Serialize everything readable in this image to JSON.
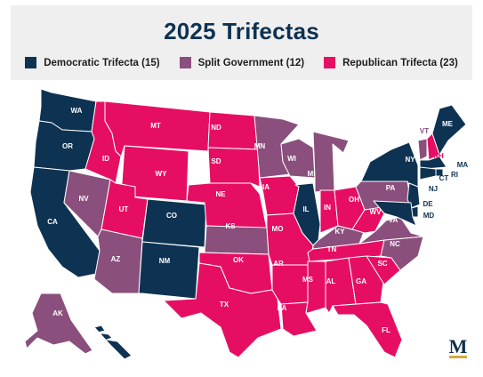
{
  "title": "2025 Trifectas",
  "colors": {
    "democratic": "#0e3251",
    "split": "#8a4f7d",
    "republican": "#e60e62",
    "border": "#ffffff",
    "logo": "#0e3251",
    "logo_accent": "#d6a93b"
  },
  "legend": [
    {
      "key": "democratic",
      "label": "Democratic Trifecta (15)"
    },
    {
      "key": "split",
      "label": "Split Government (12)"
    },
    {
      "key": "republican",
      "label": "Republican Trifecta (23)"
    }
  ],
  "logo": {
    "letter": "M",
    "icon": "ballotpedia-logo-icon"
  },
  "states": [
    {
      "abbr": "WA",
      "party": "democratic"
    },
    {
      "abbr": "OR",
      "party": "democratic"
    },
    {
      "abbr": "CA",
      "party": "democratic"
    },
    {
      "abbr": "NV",
      "party": "split"
    },
    {
      "abbr": "ID",
      "party": "republican"
    },
    {
      "abbr": "MT",
      "party": "republican"
    },
    {
      "abbr": "WY",
      "party": "republican"
    },
    {
      "abbr": "UT",
      "party": "republican"
    },
    {
      "abbr": "AZ",
      "party": "split"
    },
    {
      "abbr": "CO",
      "party": "democratic"
    },
    {
      "abbr": "NM",
      "party": "democratic"
    },
    {
      "abbr": "ND",
      "party": "republican"
    },
    {
      "abbr": "SD",
      "party": "republican"
    },
    {
      "abbr": "NE",
      "party": "republican"
    },
    {
      "abbr": "KS",
      "party": "split"
    },
    {
      "abbr": "OK",
      "party": "republican"
    },
    {
      "abbr": "TX",
      "party": "republican"
    },
    {
      "abbr": "MN",
      "party": "split"
    },
    {
      "abbr": "IA",
      "party": "republican"
    },
    {
      "abbr": "MO",
      "party": "republican"
    },
    {
      "abbr": "AR",
      "party": "republican"
    },
    {
      "abbr": "LA",
      "party": "republican"
    },
    {
      "abbr": "WI",
      "party": "split"
    },
    {
      "abbr": "IL",
      "party": "democratic"
    },
    {
      "abbr": "MI",
      "party": "split"
    },
    {
      "abbr": "IN",
      "party": "republican"
    },
    {
      "abbr": "OH",
      "party": "republican"
    },
    {
      "abbr": "KY",
      "party": "split"
    },
    {
      "abbr": "TN",
      "party": "republican"
    },
    {
      "abbr": "MS",
      "party": "republican"
    },
    {
      "abbr": "AL",
      "party": "republican"
    },
    {
      "abbr": "GA",
      "party": "republican"
    },
    {
      "abbr": "FL",
      "party": "republican"
    },
    {
      "abbr": "SC",
      "party": "republican"
    },
    {
      "abbr": "NC",
      "party": "split"
    },
    {
      "abbr": "VA",
      "party": "split"
    },
    {
      "abbr": "WV",
      "party": "republican"
    },
    {
      "abbr": "PA",
      "party": "split"
    },
    {
      "abbr": "NY",
      "party": "democratic"
    },
    {
      "abbr": "VT",
      "party": "split"
    },
    {
      "abbr": "NH",
      "party": "republican"
    },
    {
      "abbr": "ME",
      "party": "democratic"
    },
    {
      "abbr": "MA",
      "party": "democratic"
    },
    {
      "abbr": "RI",
      "party": "democratic"
    },
    {
      "abbr": "CT",
      "party": "democratic"
    },
    {
      "abbr": "NJ",
      "party": "democratic"
    },
    {
      "abbr": "DE",
      "party": "democratic"
    },
    {
      "abbr": "MD",
      "party": "democratic"
    },
    {
      "abbr": "AK",
      "party": "split"
    },
    {
      "abbr": "HI",
      "party": "democratic"
    }
  ]
}
